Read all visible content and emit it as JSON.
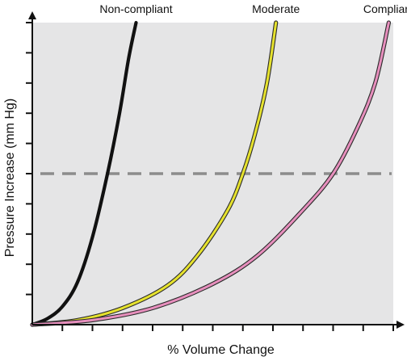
{
  "chart_data": {
    "type": "line",
    "title": "",
    "xlabel": "% Volume Change",
    "ylabel": "Pressure Increase (mm Hg)",
    "xlim": [
      0,
      12
    ],
    "ylim": [
      0,
      10
    ],
    "x_ticks": [
      1,
      2,
      3,
      4,
      5,
      6,
      7,
      8,
      9,
      10,
      11,
      12
    ],
    "y_ticks": [
      1,
      2,
      3,
      4,
      5,
      6,
      7,
      8,
      9,
      10
    ],
    "tick_labels_shown": false,
    "grid": false,
    "background_color": "#e5e5e6",
    "reference_line": {
      "y": 5,
      "style": "dashed",
      "color": "#8c8c8c"
    },
    "series": [
      {
        "name": "Non-compliant",
        "color": "#111111",
        "points": [
          [
            0,
            0
          ],
          [
            0.5,
            0.2
          ],
          [
            1.0,
            0.6
          ],
          [
            1.5,
            1.4
          ],
          [
            2.0,
            2.9
          ],
          [
            2.5,
            5.0
          ],
          [
            2.9,
            7.0
          ],
          [
            3.2,
            8.8
          ],
          [
            3.45,
            10.0
          ]
        ]
      },
      {
        "name": "Moderate",
        "color": "#e6e22e",
        "points": [
          [
            0,
            0
          ],
          [
            1.5,
            0.15
          ],
          [
            3.0,
            0.55
          ],
          [
            4.5,
            1.3
          ],
          [
            5.5,
            2.3
          ],
          [
            6.5,
            3.8
          ],
          [
            7.0,
            5.0
          ],
          [
            7.4,
            6.3
          ],
          [
            7.8,
            8.0
          ],
          [
            8.1,
            10.0
          ]
        ]
      },
      {
        "name": "Compliant",
        "color": "#e78fbd",
        "points": [
          [
            0,
            0
          ],
          [
            2.0,
            0.15
          ],
          [
            4.0,
            0.55
          ],
          [
            6.0,
            1.35
          ],
          [
            7.5,
            2.3
          ],
          [
            9.0,
            3.8
          ],
          [
            10.0,
            5.0
          ],
          [
            10.8,
            6.5
          ],
          [
            11.4,
            8.0
          ],
          [
            11.85,
            10.0
          ]
        ]
      }
    ]
  }
}
